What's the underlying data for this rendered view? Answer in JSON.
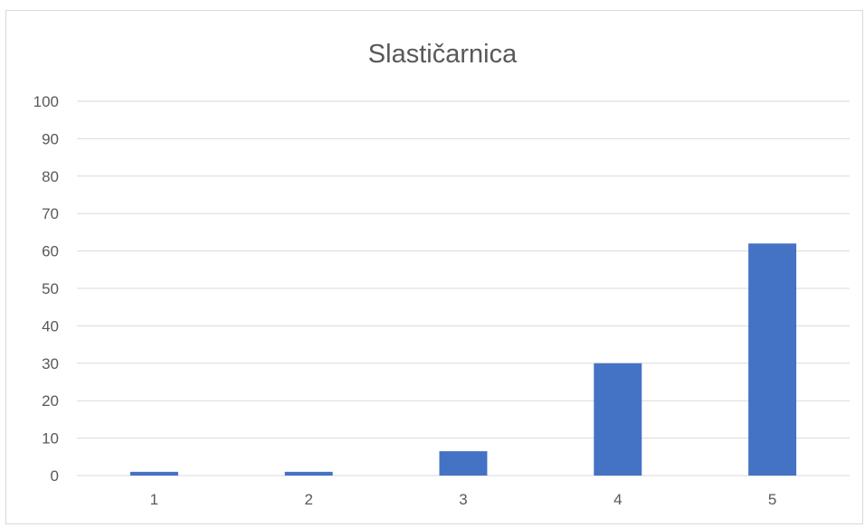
{
  "chart_data": {
    "type": "bar",
    "title": "Slastičarnica",
    "categories": [
      "1",
      "2",
      "3",
      "4",
      "5"
    ],
    "values": [
      1,
      1,
      6.5,
      30,
      62
    ],
    "xlabel": "",
    "ylabel": "",
    "ylim": [
      0,
      100
    ],
    "yticks": [
      0,
      10,
      20,
      30,
      40,
      50,
      60,
      70,
      80,
      90,
      100
    ],
    "grid": true,
    "legend": "none",
    "colors": {
      "bar": "#4472c4",
      "gridline": "#d9d9d9",
      "text": "#595959"
    }
  }
}
